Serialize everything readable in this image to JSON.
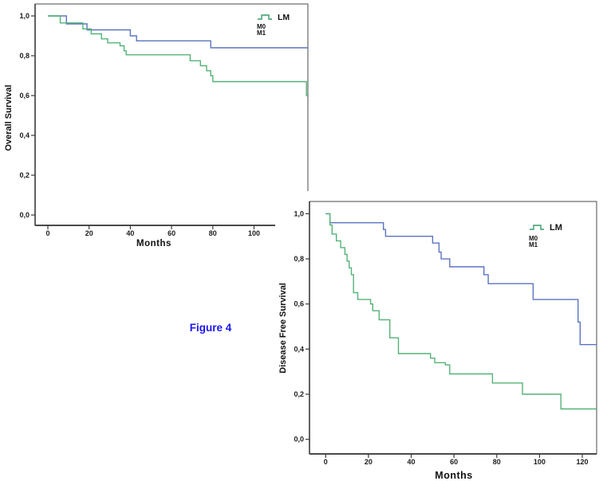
{
  "page": {
    "background": "#ffffff"
  },
  "figure_caption": {
    "text": "Figure 4",
    "color": "#1b16f2"
  },
  "axis_color": "#4a4a4a",
  "chart_data": [
    {
      "type": "line",
      "subtype": "kaplan-meier-step",
      "title": "",
      "xlabel": "Months",
      "ylabel": "Overall Survival",
      "x_ticks": [
        0,
        20,
        40,
        60,
        80,
        100
      ],
      "y_tick_labels": [
        "1,0",
        "0,8",
        "0,6",
        "0,4",
        "0,2",
        "0,0"
      ],
      "y_tick_values": [
        1.0,
        0.8,
        0.6,
        0.4,
        0.2,
        0.0
      ],
      "xlim": [
        -6,
        126
      ],
      "ylim": [
        -0.05,
        1.06
      ],
      "grid": "off",
      "legend": {
        "title": "LM",
        "position": "top-right",
        "entries": [
          {
            "label": "M0",
            "color": "#5b74c0"
          },
          {
            "label": "M1",
            "color": "#53b377"
          }
        ]
      },
      "series": [
        {
          "name": "M0",
          "color": "#5b74c0",
          "points": [
            [
              0,
              1.0
            ],
            [
              9,
              0.96
            ],
            [
              19,
              0.93
            ],
            [
              40,
              0.9
            ],
            [
              43,
              0.875
            ],
            [
              79,
              0.84
            ],
            [
              126,
              0.84
            ]
          ]
        },
        {
          "name": "M1",
          "color": "#53b377",
          "points": [
            [
              0,
              1.0
            ],
            [
              6,
              0.965
            ],
            [
              17,
              0.935
            ],
            [
              21,
              0.91
            ],
            [
              26,
              0.885
            ],
            [
              29,
              0.865
            ],
            [
              35,
              0.85
            ],
            [
              37,
              0.825
            ],
            [
              38,
              0.805
            ],
            [
              69,
              0.775
            ],
            [
              74,
              0.75
            ],
            [
              77,
              0.725
            ],
            [
              79,
              0.7
            ],
            [
              80,
              0.67
            ],
            [
              125.2,
              0.67
            ],
            [
              125.4,
              0.6
            ],
            [
              126,
              0.6
            ]
          ]
        }
      ]
    },
    {
      "type": "line",
      "subtype": "kaplan-meier-step",
      "title": "",
      "xlabel": "Months",
      "ylabel": "Disease Free Survival",
      "x_ticks": [
        0,
        20,
        40,
        60,
        80,
        100,
        120
      ],
      "y_tick_labels": [
        "1,0",
        "0,8",
        "0,6",
        "0,4",
        "0,2",
        "0,0"
      ],
      "y_tick_values": [
        1.0,
        0.8,
        0.6,
        0.4,
        0.2,
        0.0
      ],
      "xlim": [
        -8,
        127
      ],
      "ylim": [
        -0.07,
        1.06
      ],
      "grid": "off",
      "legend": {
        "title": "LM",
        "position": "top-right",
        "entries": [
          {
            "label": "M0",
            "color": "#5b74c0"
          },
          {
            "label": "M1",
            "color": "#53b377"
          }
        ]
      },
      "series": [
        {
          "name": "M0",
          "color": "#5b74c0",
          "points": [
            [
              0,
              1.0
            ],
            [
              2,
              0.96
            ],
            [
              27,
              0.93
            ],
            [
              28,
              0.9
            ],
            [
              50,
              0.87
            ],
            [
              53,
              0.83
            ],
            [
              54,
              0.8
            ],
            [
              58,
              0.765
            ],
            [
              74,
              0.73
            ],
            [
              76,
              0.69
            ],
            [
              97,
              0.62
            ],
            [
              118,
              0.52
            ],
            [
              119,
              0.42
            ],
            [
              127,
              0.42
            ]
          ]
        },
        {
          "name": "M1",
          "color": "#53b377",
          "points": [
            [
              0,
              1.0
            ],
            [
              2,
              0.95
            ],
            [
              3,
              0.91
            ],
            [
              5,
              0.88
            ],
            [
              7,
              0.85
            ],
            [
              9,
              0.82
            ],
            [
              10,
              0.79
            ],
            [
              11,
              0.76
            ],
            [
              12,
              0.73
            ],
            [
              13,
              0.65
            ],
            [
              15,
              0.62
            ],
            [
              21,
              0.6
            ],
            [
              22,
              0.57
            ],
            [
              25,
              0.53
            ],
            [
              30,
              0.45
            ],
            [
              34,
              0.38
            ],
            [
              49,
              0.36
            ],
            [
              51,
              0.34
            ],
            [
              56,
              0.33
            ],
            [
              58,
              0.29
            ],
            [
              78,
              0.25
            ],
            [
              92,
              0.2
            ],
            [
              110,
              0.135
            ],
            [
              127,
              0.135
            ]
          ]
        }
      ]
    }
  ]
}
